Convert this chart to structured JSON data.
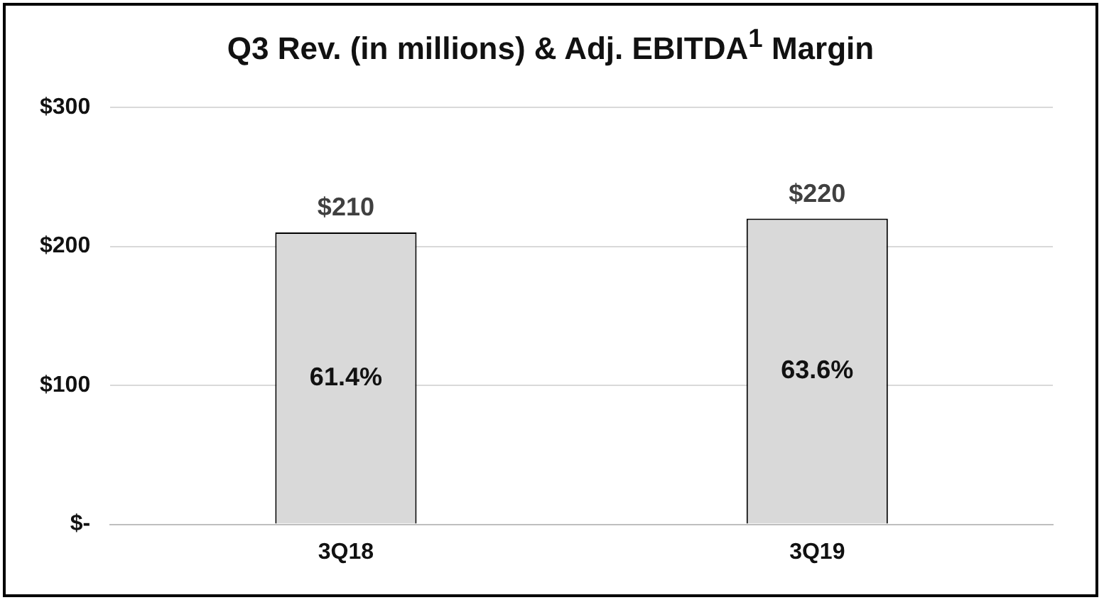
{
  "chart_data": {
    "type": "bar",
    "title": "Q3 Rev. (in millions) & Adj. EBITDA$^{1}$ Margin",
    "categories": [
      "3Q18",
      "3Q19"
    ],
    "values": [
      210,
      220
    ],
    "color": "#d9d9d9",
    "value_labels": [
      "$210",
      "$220"
    ],
    "ylim": [
      0,
      300
    ],
    "yticks": [
      {
        "value": 0,
        "label": "$-"
      },
      {
        "value": 100,
        "label": "$100"
      },
      {
        "value": 200,
        "label": "$200"
      },
      {
        "value": 300,
        "label": "$300"
      }
    ],
    "grid": "y",
    "legend": false,
    "annotations": [
      "61.4%",
      "63.6%"
    ]
  }
}
